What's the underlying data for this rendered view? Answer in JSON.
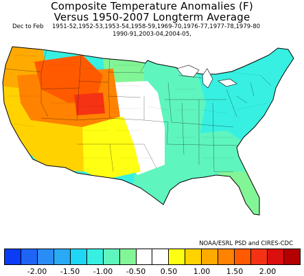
{
  "title_line1": "Composite Temperature Anomalies (F)",
  "title_line2": "Versus 1950-2007 Longterm Average",
  "season": "Dec to Feb",
  "years_line1": "1951-52,1952-53,1953-54,1958-59,1969-70,1976-77,1977-78,1979-80",
  "years_line2": "1990-91,2003-04,2004-05,",
  "credit": "NOAA/ESRL PSD and CIRES-CDC",
  "legend": {
    "colors": [
      "#0a3cf5",
      "#1e64f5",
      "#2a8cf5",
      "#2aaaf5",
      "#1ed7f5",
      "#37f0e1",
      "#5ff5be",
      "#82f596",
      "#ffffff",
      "#ffffff",
      "#ffff14",
      "#ffd200",
      "#ffaa00",
      "#ff8200",
      "#ff5a00",
      "#f53214",
      "#dc0f0f",
      "#b40000"
    ],
    "tick_labels": [
      "-2.00",
      "-1.50",
      "-1.00",
      "-0.50",
      "0.50",
      "1.00",
      "1.50",
      "2.00"
    ]
  },
  "regions": [
    {
      "name": "pacific-northwest-coast",
      "color": "#ffaa00"
    },
    {
      "name": "idaho-montana-core",
      "color": "#ff5a00"
    },
    {
      "name": "wyoming-hotspot",
      "color": "#f53214"
    },
    {
      "name": "great-basin",
      "color": "#ff8200"
    },
    {
      "name": "california-coast",
      "color": "#ffd200"
    },
    {
      "name": "desert-southwest",
      "color": "#ffd200"
    },
    {
      "name": "southern-plains-warm",
      "color": "#ffff14"
    },
    {
      "name": "central-plains-neutral",
      "color": "#ffffff"
    },
    {
      "name": "northern-plains-cool",
      "color": "#82f596"
    },
    {
      "name": "midwest-east",
      "color": "#5ff5be"
    },
    {
      "name": "northeast-great-lakes",
      "color": "#37f0e1"
    },
    {
      "name": "southeast",
      "color": "#5ff5be"
    },
    {
      "name": "florida",
      "color": "#82f596"
    }
  ]
}
